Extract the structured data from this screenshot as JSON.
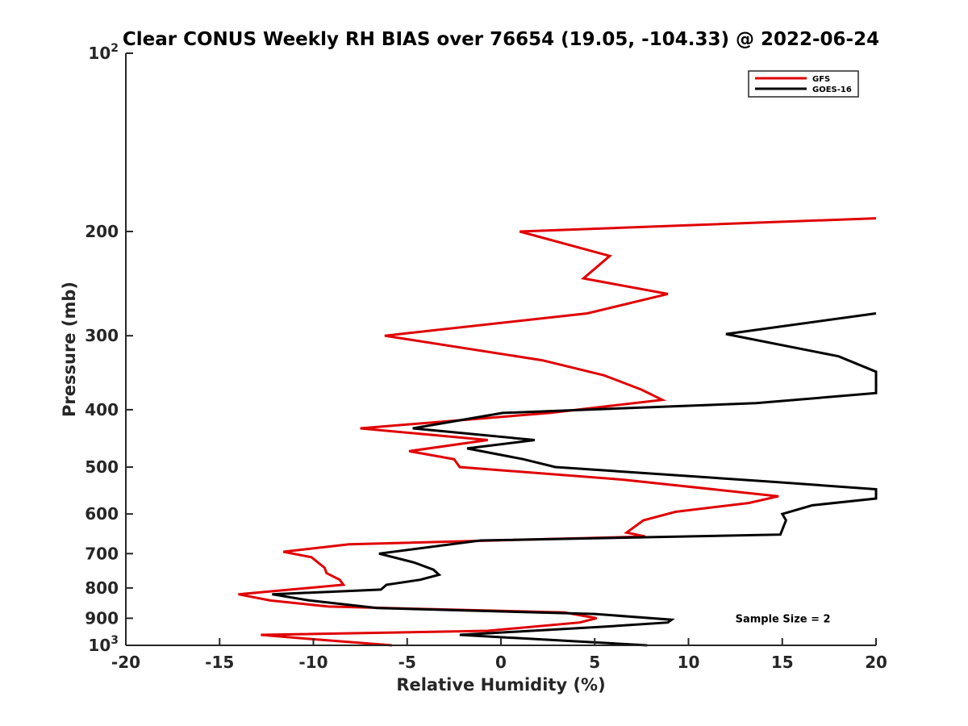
{
  "chart_data": {
    "type": "line",
    "title": "Clear CONUS Weekly RH BIAS over 76654 (19.05, -104.33) @ 2022-06-24",
    "xlabel": "Relative Humidity (%)",
    "ylabel": "Pressure (mb)",
    "xlim": [
      -20,
      20
    ],
    "ylim": [
      100,
      1000
    ],
    "yscale": "log",
    "y_reversed": true,
    "grid": false,
    "x_ticks": [
      -20,
      -15,
      -10,
      -5,
      0,
      5,
      10,
      15,
      20
    ],
    "x_tick_labels": [
      "-20",
      "-15",
      "-10",
      "-5",
      "0",
      "5",
      "10",
      "15",
      "20"
    ],
    "y_ticks": [
      {
        "value": 100,
        "base": "10",
        "exp": "2"
      },
      {
        "value": 200,
        "label": "200"
      },
      {
        "value": 300,
        "label": "300"
      },
      {
        "value": 400,
        "label": "400"
      },
      {
        "value": 500,
        "label": "500"
      },
      {
        "value": 600,
        "label": "600"
      },
      {
        "value": 700,
        "label": "700"
      },
      {
        "value": 800,
        "label": "800"
      },
      {
        "value": 900,
        "label": "900"
      },
      {
        "value": 1000,
        "base": "10",
        "exp": "3"
      }
    ],
    "legend_position": "top-right",
    "series": [
      {
        "name": "GFS",
        "color": "#e00000",
        "points": [
          [
            20,
            190
          ],
          [
            1.0,
            200
          ],
          [
            5.8,
            220
          ],
          [
            4.4,
            240
          ],
          [
            8.9,
            255
          ],
          [
            4.6,
            275
          ],
          [
            -6.2,
            300
          ],
          [
            2.2,
            330
          ],
          [
            5.5,
            350
          ],
          [
            7.5,
            370
          ],
          [
            8.6,
            385
          ],
          [
            2.6,
            405
          ],
          [
            -7.5,
            430
          ],
          [
            -0.7,
            450
          ],
          [
            -4.9,
            470
          ],
          [
            -2.5,
            485
          ],
          [
            -2.2,
            500
          ],
          [
            6.5,
            525
          ],
          [
            14.8,
            560
          ],
          [
            13.2,
            575
          ],
          [
            9.3,
            595
          ],
          [
            7.6,
            615
          ],
          [
            6.7,
            645
          ],
          [
            7.7,
            655
          ],
          [
            -8.1,
            675
          ],
          [
            -11.6,
            695
          ],
          [
            -10.1,
            710
          ],
          [
            -9.4,
            740
          ],
          [
            -9.3,
            755
          ],
          [
            -8.6,
            775
          ],
          [
            -8.4,
            790
          ],
          [
            -14.0,
            820
          ],
          [
            -12.3,
            840
          ],
          [
            -9.2,
            860
          ],
          [
            3.4,
            880
          ],
          [
            5.1,
            900
          ],
          [
            4.2,
            915
          ],
          [
            -0.7,
            945
          ],
          [
            -12.8,
            960
          ],
          [
            -10.3,
            975
          ],
          [
            -5.8,
            1000
          ]
        ]
      },
      {
        "name": "GOES-16",
        "color": "#000000",
        "points": [
          [
            20,
            275
          ],
          [
            12.0,
            298
          ],
          [
            18.0,
            325
          ],
          [
            20,
            345
          ],
          [
            20,
            375
          ],
          [
            13.6,
            390
          ],
          [
            0.1,
            405
          ],
          [
            -4.7,
            430
          ],
          [
            1.8,
            450
          ],
          [
            -1.8,
            465
          ],
          [
            1.2,
            485
          ],
          [
            2.9,
            500
          ],
          [
            14.7,
            530
          ],
          [
            20,
            545
          ],
          [
            20,
            565
          ],
          [
            16.6,
            580
          ],
          [
            15.0,
            600
          ],
          [
            15.2,
            615
          ],
          [
            14.9,
            650
          ],
          [
            -1.1,
            665
          ],
          [
            -6.5,
            700
          ],
          [
            -4.6,
            725
          ],
          [
            -3.6,
            745
          ],
          [
            -3.3,
            760
          ],
          [
            -4.3,
            775
          ],
          [
            -6.1,
            790
          ],
          [
            -6.4,
            805
          ],
          [
            -12.2,
            820
          ],
          [
            -10.2,
            840
          ],
          [
            -6.6,
            865
          ],
          [
            5.0,
            885
          ],
          [
            9.1,
            905
          ],
          [
            8.9,
            915
          ],
          [
            5.5,
            930
          ],
          [
            -2.2,
            960
          ],
          [
            7.8,
            1000
          ]
        ]
      }
    ],
    "annotations": [
      {
        "text": "Sample Size = 2",
        "x": 12.5,
        "y": 900
      }
    ]
  }
}
